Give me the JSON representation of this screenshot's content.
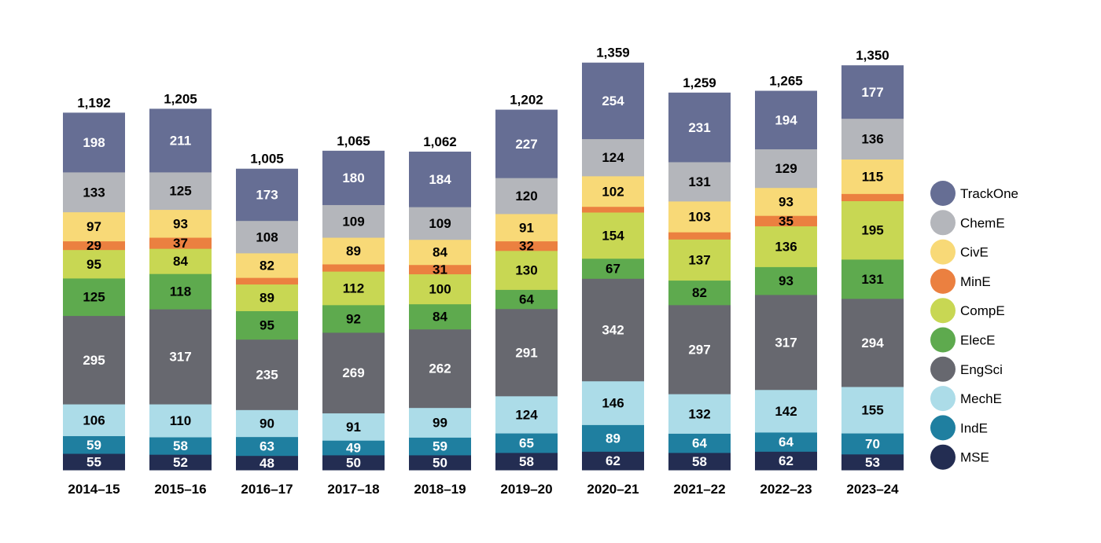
{
  "chart_data": {
    "type": "bar",
    "stacked": true,
    "title": "",
    "xlabel": "",
    "ylabel": "",
    "categories": [
      "2014–15",
      "2015–16",
      "2016–17",
      "2017–18",
      "2018–19",
      "2019–20",
      "2020–21",
      "2021–22",
      "2022–23",
      "2023–24"
    ],
    "totals": [
      "1,192",
      "1,205",
      "1,005",
      "1,065",
      "1,062",
      "1,202",
      "1,359",
      "1,259",
      "1,265",
      "1,350"
    ],
    "series": [
      {
        "name": "MSE",
        "color": "#232d52",
        "label_color": "#ffffff",
        "values": [
          55,
          52,
          48,
          50,
          50,
          58,
          62,
          58,
          62,
          53
        ]
      },
      {
        "name": "IndE",
        "color": "#1f7fa0",
        "label_color": "#ffffff",
        "values": [
          59,
          58,
          63,
          49,
          59,
          65,
          89,
          64,
          64,
          70
        ]
      },
      {
        "name": "MechE",
        "color": "#acdce8",
        "label_color": "#000000",
        "values": [
          106,
          110,
          90,
          91,
          99,
          124,
          146,
          132,
          142,
          155
        ]
      },
      {
        "name": "EngSci",
        "color": "#67686f",
        "label_color": "#ffffff",
        "values": [
          295,
          317,
          235,
          269,
          262,
          291,
          342,
          297,
          317,
          294
        ]
      },
      {
        "name": "ElecE",
        "color": "#5eaa4e",
        "label_color": "#000000",
        "values": [
          125,
          118,
          95,
          92,
          84,
          64,
          67,
          82,
          93,
          131
        ]
      },
      {
        "name": "CompE",
        "color": "#c8d753",
        "label_color": "#000000",
        "values": [
          95,
          84,
          89,
          112,
          100,
          130,
          154,
          137,
          136,
          195
        ]
      },
      {
        "name": "MinE",
        "color": "#eb8040",
        "label_color": "#000000",
        "values": [
          29,
          37,
          22,
          24,
          31,
          32,
          19,
          24,
          35,
          24
        ]
      },
      {
        "name": "CivE",
        "color": "#f8d977",
        "label_color": "#000000",
        "values": [
          97,
          93,
          82,
          89,
          84,
          91,
          102,
          103,
          93,
          115
        ]
      },
      {
        "name": "ChemE",
        "color": "#b4b6bb",
        "label_color": "#000000",
        "values": [
          133,
          125,
          108,
          109,
          109,
          120,
          124,
          131,
          129,
          136
        ]
      },
      {
        "name": "TrackOne",
        "color": "#666e94",
        "label_color": "#ffffff",
        "values": [
          198,
          211,
          173,
          180,
          184,
          227,
          254,
          231,
          194,
          177
        ]
      }
    ],
    "legend_position": "right",
    "legend_order": [
      "TrackOne",
      "ChemE",
      "CivE",
      "MinE",
      "CompE",
      "ElecE",
      "EngSci",
      "MechE",
      "IndE",
      "MSE"
    ],
    "grid": false
  }
}
